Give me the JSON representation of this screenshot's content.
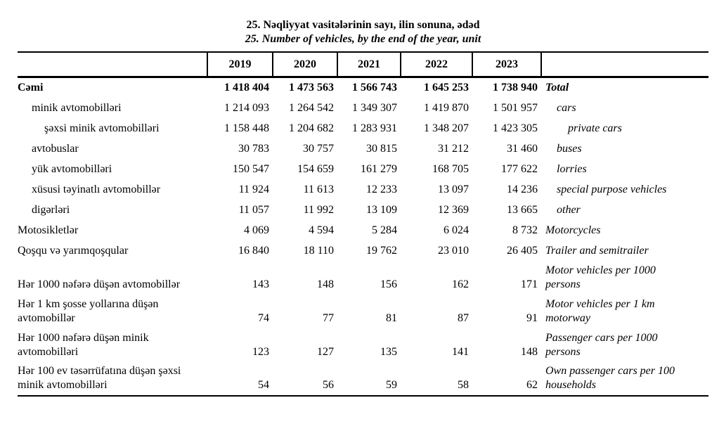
{
  "title": {
    "az": "25. Nəqliyyat vasitələrinin sayı, ilin sonuna, ədəd",
    "en": "25. Number of vehicles, by the end of the year, unit"
  },
  "years": [
    "2019",
    "2020",
    "2021",
    "2022",
    "2023"
  ],
  "rows": [
    {
      "az": "Cəmi",
      "en": "Total",
      "values": [
        "1 418 404",
        "1 473 563",
        "1 566 743",
        "1 645 253",
        "1 738 940"
      ]
    },
    {
      "az": "minik avtomobilləri",
      "en": "cars",
      "values": [
        "1 214 093",
        "1 264 542",
        "1 349 307",
        "1 419 870",
        "1 501 957"
      ]
    },
    {
      "az": "şəxsi minik avtomobilləri",
      "en": "private cars",
      "values": [
        "1 158 448",
        "1 204 682",
        "1 283 931",
        "1 348 207",
        "1 423 305"
      ]
    },
    {
      "az": "avtobuslar",
      "en": "buses",
      "values": [
        "30 783",
        "30 757",
        "30 815",
        "31 212",
        "31 460"
      ]
    },
    {
      "az": "yük avtomobilləri",
      "en": "lorries",
      "values": [
        "150 547",
        "154 659",
        "161 279",
        "168 705",
        "177 622"
      ]
    },
    {
      "az": "xüsusi təyinatlı avtomobillər",
      "en": "special purpose vehicles",
      "values": [
        "11 924",
        "11 613",
        "12 233",
        "13 097",
        "14 236"
      ]
    },
    {
      "az": "digərləri",
      "en": "other",
      "values": [
        "11 057",
        "11 992",
        "13 109",
        "12 369",
        "13 665"
      ]
    },
    {
      "az": "Motosikletlər",
      "en": "Motorcycles",
      "values": [
        "4 069",
        "4 594",
        "5 284",
        "6 024",
        "8 732"
      ]
    },
    {
      "az": "Qoşqu və yarımqoşqular",
      "en": "Trailer and semitrailer",
      "values": [
        "16 840",
        "18 110",
        "19 762",
        "23 010",
        "26 405"
      ]
    },
    {
      "az": "Hər 1000 nəfərə düşən avtomobillər",
      "en": "Motor vehicles per 1000 persons",
      "values": [
        "143",
        "148",
        "156",
        "162",
        "171"
      ]
    },
    {
      "az": "Hər 1 km şosse yollarına düşən avtomobillər",
      "en": "Motor vehicles per 1 km motorway",
      "values": [
        "74",
        "77",
        "81",
        "87",
        "91"
      ]
    },
    {
      "az": "Hər 1000 nəfərə düşən minik avtomobilləri",
      "en": "Passenger cars per 1000 persons",
      "values": [
        "123",
        "127",
        "135",
        "141",
        "148"
      ]
    },
    {
      "az": "Hər 100 ev təsərrüfatına düşən şəxsi minik avtomobilləri",
      "en": "Own passenger cars per 100 households",
      "values": [
        "54",
        "56",
        "59",
        "58",
        "62"
      ]
    }
  ]
}
